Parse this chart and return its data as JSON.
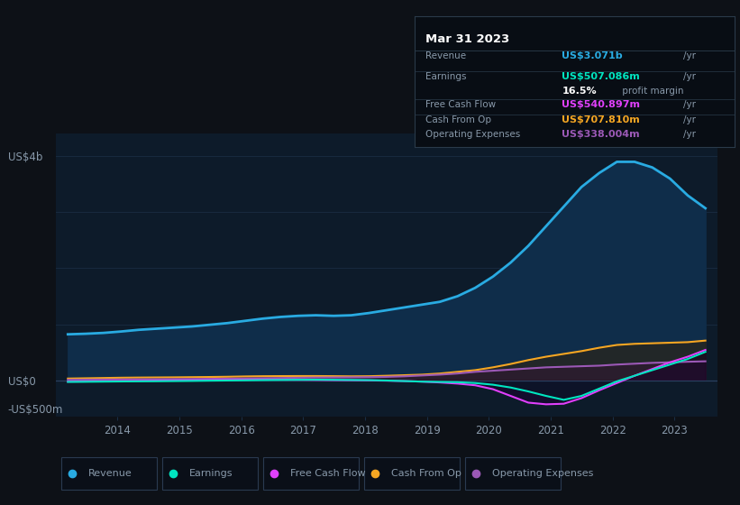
{
  "bg_color": "#0d1117",
  "plot_bg_color": "#0d1b2a",
  "grid_color": "#1a2e45",
  "text_color": "#8899aa",
  "title_color": "#ffffff",
  "years_start": 2013.2,
  "years_end": 2023.5,
  "ylim": [
    -650,
    4400
  ],
  "xlim_left": 2013.0,
  "xlim_right": 2023.7,
  "x_ticks": [
    2014,
    2015,
    2016,
    2017,
    2018,
    2019,
    2020,
    2021,
    2022,
    2023
  ],
  "revenue_color": "#29abe2",
  "earnings_color": "#00e5c0",
  "free_cash_flow_color": "#e040fb",
  "cash_from_op_color": "#f5a623",
  "operating_expenses_color": "#9b59b6",
  "tooltip_bg": "#080d14",
  "tooltip_border": "#2a3a4a",
  "tooltip_title": "Mar 31 2023",
  "tooltip_revenue_color": "#29abe2",
  "tooltip_earnings_color": "#00e5c0",
  "tooltip_fcf_color": "#e040fb",
  "tooltip_cashop_color": "#f5a623",
  "tooltip_opex_color": "#9b59b6",
  "legend_labels": [
    "Revenue",
    "Earnings",
    "Free Cash Flow",
    "Cash From Op",
    "Operating Expenses"
  ],
  "legend_colors": [
    "#29abe2",
    "#00e5c0",
    "#e040fb",
    "#f5a623",
    "#9b59b6"
  ],
  "revenue": [
    820,
    830,
    845,
    870,
    900,
    920,
    940,
    960,
    990,
    1020,
    1060,
    1100,
    1130,
    1150,
    1160,
    1150,
    1160,
    1200,
    1250,
    1300,
    1350,
    1400,
    1500,
    1650,
    1850,
    2100,
    2400,
    2750,
    3100,
    3450,
    3700,
    3900,
    3900,
    3800,
    3600,
    3300,
    3071
  ],
  "earnings": [
    -30,
    -28,
    -25,
    -22,
    -20,
    -18,
    -15,
    -12,
    -8,
    -5,
    -2,
    2,
    5,
    8,
    10,
    8,
    5,
    2,
    -5,
    -15,
    -25,
    -30,
    -35,
    -50,
    -80,
    -130,
    -200,
    -280,
    -350,
    -280,
    -150,
    -20,
    80,
    180,
    280,
    380,
    507
  ],
  "free_cash_flow": [
    -25,
    -22,
    -18,
    -14,
    -10,
    -6,
    -2,
    2,
    5,
    8,
    10,
    12,
    10,
    8,
    5,
    2,
    0,
    -3,
    -8,
    -15,
    -25,
    -40,
    -60,
    -90,
    -160,
    -280,
    -400,
    -430,
    -420,
    -320,
    -180,
    -50,
    80,
    200,
    320,
    420,
    541
  ],
  "cash_from_op": [
    30,
    35,
    40,
    45,
    48,
    50,
    52,
    55,
    58,
    62,
    68,
    72,
    74,
    75,
    75,
    73,
    70,
    72,
    80,
    90,
    100,
    120,
    150,
    180,
    230,
    290,
    360,
    420,
    470,
    520,
    580,
    630,
    650,
    660,
    670,
    680,
    708
  ],
  "operating_expenses": [
    8,
    10,
    12,
    14,
    16,
    18,
    20,
    22,
    25,
    28,
    32,
    36,
    40,
    44,
    48,
    50,
    52,
    55,
    60,
    70,
    85,
    100,
    120,
    150,
    170,
    190,
    210,
    230,
    240,
    250,
    260,
    280,
    295,
    310,
    320,
    330,
    338
  ],
  "n_points": 37
}
